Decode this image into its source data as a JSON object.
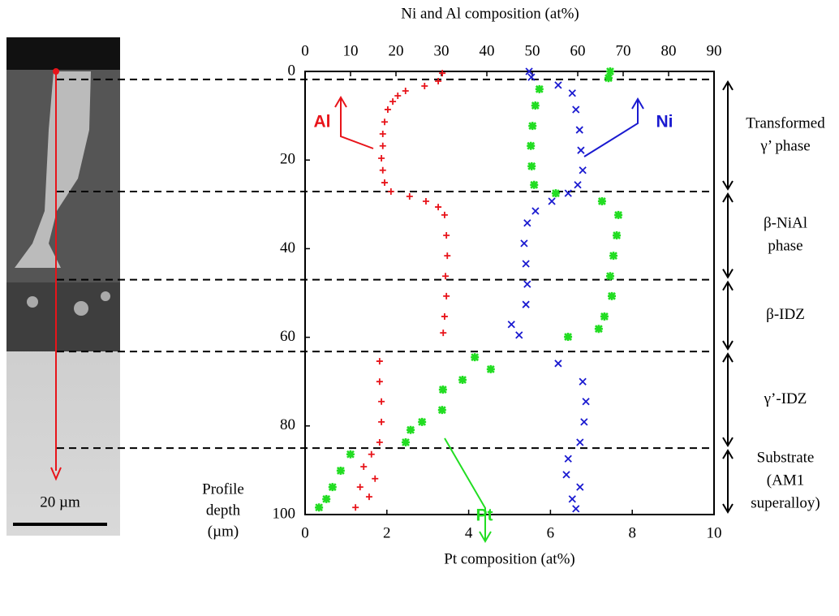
{
  "chart_data": {
    "type": "scatter",
    "title_top": "Ni and Al composition (at%)",
    "xlabel": "Pt composition (at%)",
    "ylabel": [
      "Profile",
      "depth",
      "(µm)"
    ],
    "scale_bar_label": "20 µm",
    "xlim_top": [
      0,
      90
    ],
    "xticks_top": [
      0,
      10,
      20,
      30,
      40,
      50,
      60,
      70,
      80,
      90
    ],
    "xlim": [
      0,
      10
    ],
    "xticks": [
      0,
      2,
      4,
      6,
      8,
      10
    ],
    "ylim": [
      0,
      100
    ],
    "yticks": [
      0,
      20,
      40,
      60,
      80,
      100
    ],
    "y_inverted": true,
    "boundaries": [
      1.8,
      27.1,
      47,
      63.2,
      85
    ],
    "phase_labels": [
      [
        "Transformed",
        "γ’ phase"
      ],
      [
        "β-NiAl",
        "phase"
      ],
      [
        "β-IDZ"
      ],
      [
        "γ’-IDZ"
      ],
      [
        "Substrate",
        "(AM1",
        "superalloy)"
      ]
    ],
    "series": [
      {
        "name": "Al",
        "color": "#e8141a",
        "marker": "plus",
        "axis": "top",
        "depth": [
          0.4,
          2.2,
          3.3,
          4.4,
          5.5,
          6.8,
          8.6,
          11.4,
          14.1,
          16.8,
          19.6,
          22.3,
          25.1,
          27.1,
          28.2,
          29.3,
          30.6,
          32.4,
          37,
          41.6,
          46.2,
          50.7,
          55.3,
          59,
          65.4,
          70,
          74.5,
          79.1,
          83.7,
          86.4,
          89.2,
          91.9,
          93.8,
          96,
          98.4
        ],
        "values": [
          30.2,
          29.3,
          26.3,
          22.1,
          20.4,
          19.3,
          18.2,
          17.5,
          17.1,
          17.1,
          16.8,
          17.1,
          17.5,
          18.9,
          23,
          26.6,
          29.3,
          30.7,
          31.1,
          31.3,
          30.9,
          31.1,
          30.7,
          30.4,
          16.4,
          16.4,
          16.8,
          16.8,
          16.4,
          14.6,
          12.9,
          15.4,
          12.1,
          14.1,
          11.1
        ]
      },
      {
        "name": "Ni",
        "color": "#1a1ad0",
        "marker": "cross",
        "axis": "top",
        "depth": [
          0,
          1.3,
          3.1,
          4.9,
          8.6,
          13.2,
          17.8,
          22.3,
          25.6,
          27.5,
          29.3,
          31.5,
          34.2,
          38.8,
          43.4,
          48,
          52.6,
          57.1,
          59.5,
          65.9,
          70,
          74.5,
          79.1,
          83.7,
          87.4,
          91,
          93.8,
          96.5,
          98.7
        ],
        "values": [
          49.3,
          49.8,
          55.7,
          58.8,
          59.6,
          60.4,
          60.7,
          61.1,
          60,
          57.9,
          54.3,
          50.7,
          48.9,
          48.2,
          48.6,
          48.9,
          48.6,
          45.4,
          47.1,
          55.7,
          61.1,
          61.8,
          61.4,
          60.5,
          57.9,
          57.5,
          60.5,
          58.8,
          59.6
        ]
      },
      {
        "name": "Pt",
        "color": "#22dd22",
        "marker": "bold-cross",
        "axis": "bottom",
        "depth": [
          0,
          1.5,
          4,
          7.7,
          12.3,
          16.8,
          21.4,
          25.6,
          27.5,
          29.3,
          32.4,
          37,
          41.6,
          46.2,
          50.7,
          55.3,
          58.1,
          59.9,
          64.5,
          67.2,
          69.6,
          71.8,
          76.4,
          79.1,
          80.9,
          83.7,
          86.4,
          90.1,
          93.8,
          96.5,
          98.4
        ],
        "values": [
          7.46,
          7.42,
          5.73,
          5.63,
          5.56,
          5.52,
          5.54,
          5.6,
          6.13,
          7.26,
          7.66,
          7.62,
          7.54,
          7.46,
          7.5,
          7.32,
          7.18,
          6.43,
          4.15,
          4.54,
          3.85,
          3.37,
          3.35,
          2.86,
          2.58,
          2.46,
          1.11,
          0.87,
          0.67,
          0.52,
          0.34
        ]
      }
    ]
  }
}
